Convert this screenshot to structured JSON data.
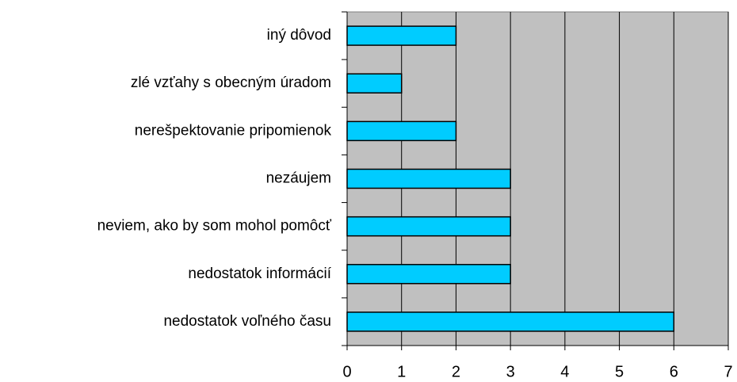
{
  "chart_data": {
    "type": "bar",
    "orientation": "horizontal",
    "categories": [
      "iný dôvod",
      "zlé vzťahy s obecným úradom",
      "nerešpektovanie pripomienok",
      "nezáujem",
      "neviem, ako by som mohol pomôcť",
      "nedostatok informácií",
      "nedostatok voľného času"
    ],
    "values": [
      2,
      1,
      2,
      3,
      3,
      3,
      6
    ],
    "color": "#00ccff",
    "xlim": [
      0,
      7
    ],
    "xticks": [
      0,
      1,
      2,
      3,
      4,
      5,
      6,
      7
    ],
    "grid": true
  }
}
